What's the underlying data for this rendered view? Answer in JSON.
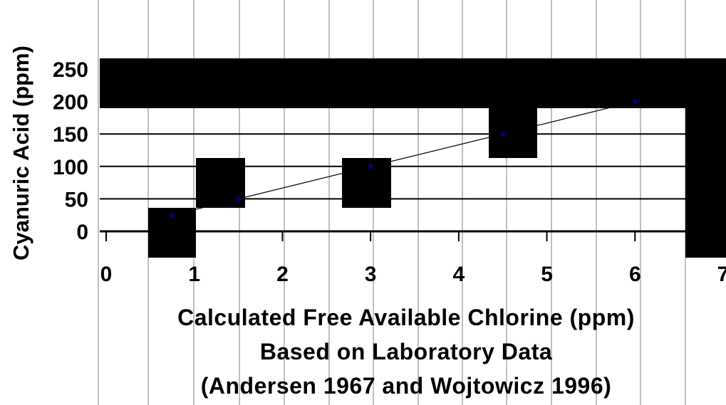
{
  "chart_data": {
    "type": "scatter",
    "title": "",
    "xlabel_lines": [
      "Calculated Free Available Chlorine (ppm)",
      "Based on Laboratory Data",
      "(Andersen 1967 and Wojtowicz 1996)"
    ],
    "ylabel": "Cyanuric Acid (ppm)",
    "xlim": [
      0,
      7
    ],
    "ylim": [
      0,
      250
    ],
    "x_ticks": [
      "0",
      "1",
      "2",
      "3",
      "4",
      "5",
      "6",
      "7"
    ],
    "y_ticks": [
      "0",
      "50",
      "100",
      "150",
      "200",
      "250"
    ],
    "grid": true,
    "legend": "none",
    "series": [
      {
        "color": "#000080",
        "points": [
          {
            "x": 0.75,
            "y": 25
          },
          {
            "x": 1.5,
            "y": 50
          },
          {
            "x": 3,
            "y": 100
          },
          {
            "x": 4.5,
            "y": 150
          },
          {
            "x": 6,
            "y": 200
          }
        ]
      }
    ],
    "trendline": {
      "from": {
        "x": 0.75,
        "y": 25
      },
      "to": {
        "x": 6,
        "y": 200
      },
      "color": "#000000"
    }
  }
}
